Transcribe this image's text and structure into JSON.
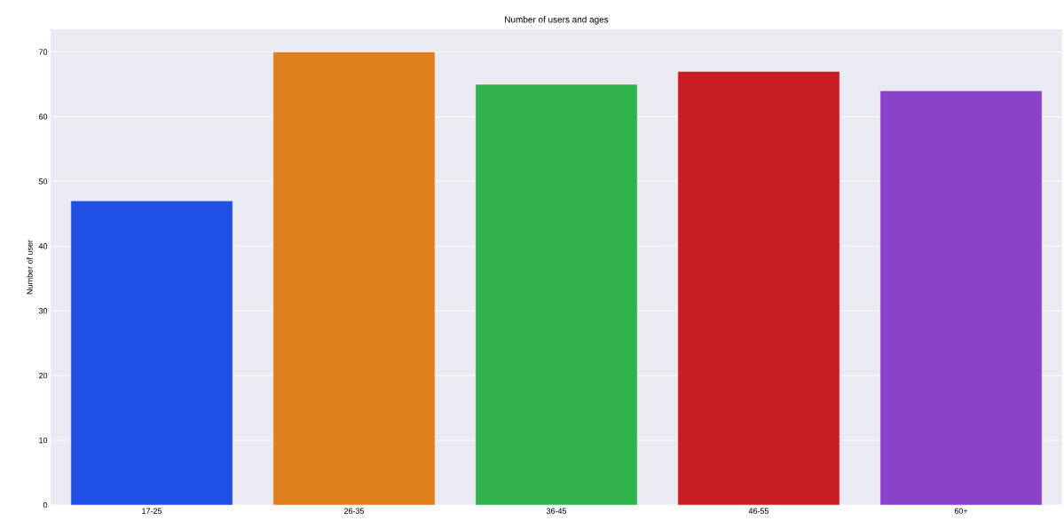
{
  "chart_data": {
    "type": "bar",
    "title": "Number of users and ages",
    "ylabel": "Number of user",
    "categories": [
      "17-25",
      "26-35",
      "36-45",
      "46-55",
      "60+"
    ],
    "values": [
      47,
      70,
      65,
      67,
      64
    ],
    "colors": [
      "#1f4fe3",
      "#e07d1f",
      "#30b24a",
      "#c91c25",
      "#8a42cc"
    ],
    "ylim": [
      0,
      73.5
    ],
    "yticks": [
      0,
      10,
      20,
      30,
      40,
      50,
      60,
      70
    ],
    "grid": "y"
  }
}
